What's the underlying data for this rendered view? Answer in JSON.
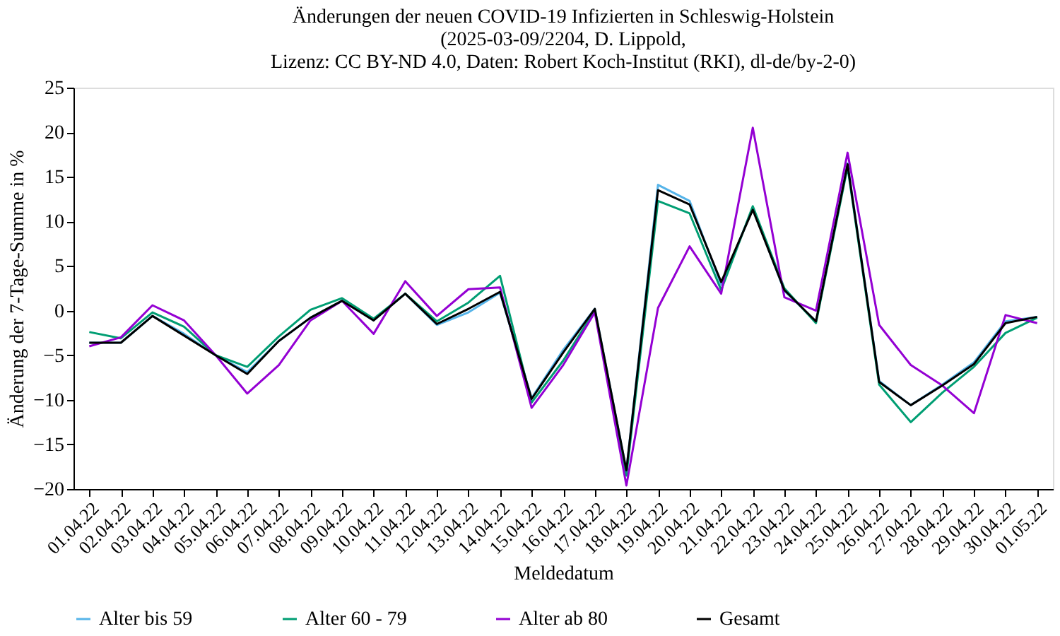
{
  "chart_data": {
    "type": "line",
    "title": "Änderungen der neuen COVID-19 Infizierten in Schleswig-Holstein\n(2025-03-09/2204, D. Lippold,\nLizenz: CC BY-ND 4.0, Daten: Robert Koch-Institut (RKI), dl-de/by-2-0)",
    "xlabel": "Meldedatum",
    "ylabel": "Änderung der 7-Tage-Summe in %",
    "categories": [
      "01.04.22",
      "02.04.22",
      "03.04.22",
      "04.04.22",
      "05.04.22",
      "06.04.22",
      "07.04.22",
      "08.04.22",
      "09.04.22",
      "10.04.22",
      "11.04.22",
      "12.04.22",
      "13.04.22",
      "14.04.22",
      "15.04.22",
      "16.04.22",
      "17.04.22",
      "18.04.22",
      "19.04.22",
      "20.04.22",
      "21.04.22",
      "22.04.22",
      "23.04.22",
      "24.04.22",
      "25.04.22",
      "26.04.22",
      "27.04.22",
      "28.04.22",
      "29.04.22",
      "30.04.22",
      "01.05.22"
    ],
    "series": [
      {
        "name": "Alter bis 59",
        "color": "#56b4e9",
        "values": [
          -3.6,
          -3.6,
          -0.6,
          -2.6,
          -5.0,
          -6.9,
          -3.4,
          -0.8,
          1.1,
          -1.1,
          1.9,
          -1.6,
          -0.2,
          2.0,
          -9.8,
          -4.4,
          0.2,
          -17.9,
          14.1,
          12.3,
          2.9,
          11.5,
          2.2,
          -1.2,
          16.5,
          -7.9,
          -10.6,
          -8.3,
          -5.8,
          -1.2,
          -0.7
        ]
      },
      {
        "name": "Alter 60 - 79",
        "color": "#009e73",
        "values": [
          -2.4,
          -3.1,
          -0.2,
          -1.8,
          -5.0,
          -6.3,
          -2.9,
          0.1,
          1.4,
          -0.9,
          1.9,
          -1.2,
          0.9,
          3.9,
          -10.3,
          -5.6,
          0.0,
          -18.5,
          12.3,
          10.9,
          2.3,
          11.7,
          2.5,
          -1.4,
          16.1,
          -8.3,
          -12.5,
          -9.2,
          -6.3,
          -2.5,
          -0.8
        ]
      },
      {
        "name": "Alter ab 80",
        "color": "#9400d3",
        "values": [
          -4.0,
          -3.0,
          0.6,
          -1.1,
          -5.0,
          -9.3,
          -6.1,
          -1.1,
          1.1,
          -2.6,
          3.3,
          -0.6,
          2.4,
          2.6,
          -10.9,
          -6.1,
          -0.2,
          -19.6,
          0.3,
          7.2,
          1.9,
          20.5,
          1.5,
          0.0,
          17.7,
          -1.6,
          -6.1,
          -8.4,
          -11.5,
          -0.5,
          -1.4
        ]
      },
      {
        "name": "Gesamt",
        "color": "#000000",
        "values": [
          -3.6,
          -3.6,
          -0.6,
          -2.8,
          -5.0,
          -7.1,
          -3.4,
          -0.8,
          1.1,
          -1.1,
          1.9,
          -1.5,
          0.2,
          2.1,
          -9.9,
          -4.7,
          0.2,
          -17.9,
          13.5,
          11.9,
          3.2,
          11.3,
          2.3,
          -1.2,
          16.4,
          -8.0,
          -10.6,
          -8.4,
          -6.0,
          -1.4,
          -0.7
        ]
      }
    ],
    "ylim": [
      -20,
      25
    ],
    "yticks": [
      -20,
      -15,
      -10,
      -5,
      0,
      5,
      10,
      15,
      20,
      25
    ],
    "grid": false,
    "legend": "bottom",
    "marker": "none",
    "line_style": "solid"
  }
}
